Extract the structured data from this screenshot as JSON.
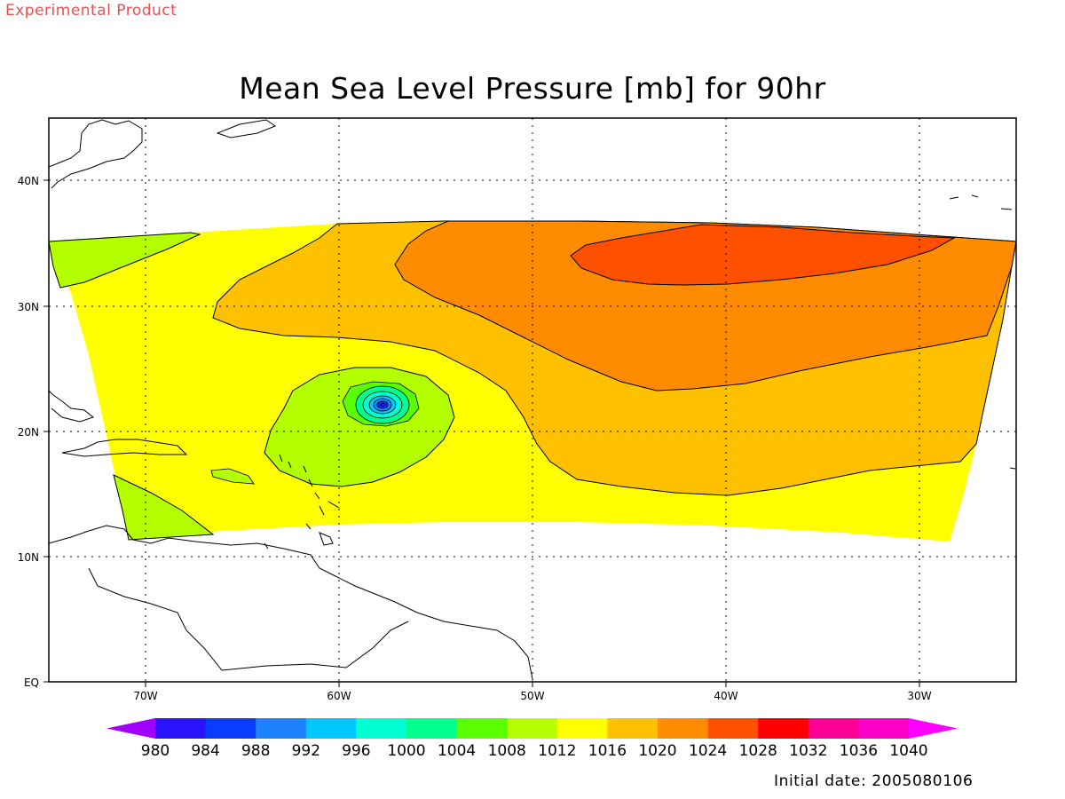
{
  "watermark": "Experimental Product",
  "title": "Mean Sea Level Pressure [mb] for 90hr",
  "initial_date": "Initial date: 2005080106",
  "axes": {
    "lat_labels": [
      "EQ",
      "10N",
      "20N",
      "30N",
      "40N"
    ],
    "lon_labels": [
      "70W",
      "60W",
      "50W",
      "40W",
      "30W"
    ],
    "lon_range": [
      -75,
      -25
    ],
    "lat_range": [
      0,
      45
    ]
  },
  "colorbar": {
    "levels": [
      "980",
      "984",
      "988",
      "992",
      "996",
      "1000",
      "1004",
      "1008",
      "1012",
      "1016",
      "1020",
      "1024",
      "1028",
      "1032",
      "1036",
      "1040"
    ],
    "colors": [
      "#a000ff",
      "#2a14ff",
      "#0a3cff",
      "#1e82ff",
      "#00c8ff",
      "#00ffd2",
      "#00ff8c",
      "#5aff00",
      "#b4ff00",
      "#ffff00",
      "#ffc000",
      "#ff8c00",
      "#ff5000",
      "#ff0000",
      "#ff0096",
      "#ff00c8",
      "#ff00ff"
    ]
  },
  "chart_data": {
    "type": "heatmap",
    "title": "Mean Sea Level Pressure [mb] for 90hr",
    "units": "mb",
    "field": "mean sea level pressure",
    "domain_lon": [
      -75,
      -25
    ],
    "domain_lat": [
      0,
      45
    ],
    "contour_interval_mb": 4,
    "features": [
      {
        "name": "low",
        "lon": -57.8,
        "lat": 22.1,
        "min_pressure_band": "980-984"
      },
      {
        "name": "high",
        "lon": -40,
        "lat": 34,
        "pressure_band": "1024-1028"
      }
    ]
  }
}
